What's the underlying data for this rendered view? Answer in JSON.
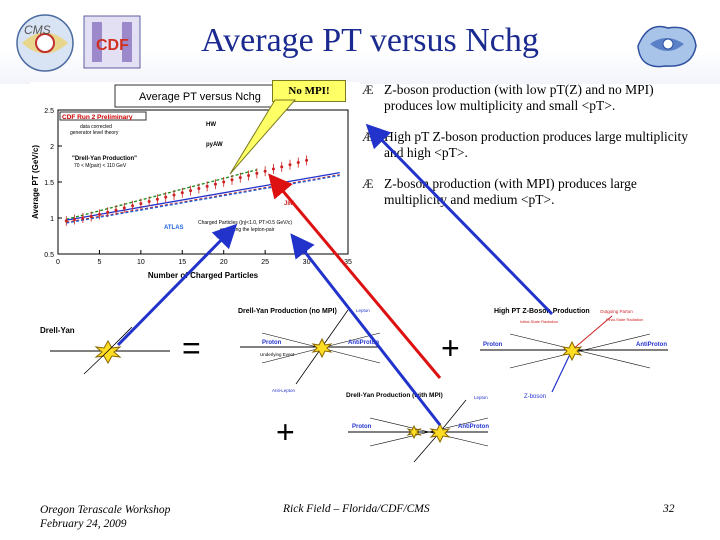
{
  "slide": {
    "title": "Average PT versus Nchg",
    "callout": "No MPI!",
    "bullets": [
      "Z-boson production (with low pT(Z) and no MPI) produces low multiplicity and small <pT>.",
      "High pT Z-boson production produces large multiplicity and high <pT>.",
      "Z-boson production (with MPI) produces large multiplicity and medium <pT>."
    ],
    "bullet_mark": "Æ",
    "equals": "=",
    "plus": "+",
    "footer": {
      "left_line1": "Oregon Terascale Workshop",
      "left_line2": "February 24, 2009",
      "center": "Rick Field – Florida/CDF/CMS",
      "page": "32"
    }
  },
  "chart_data": {
    "type": "scatter",
    "title": "Average PT versus Nchg",
    "xlabel": "Number of Charged Particles",
    "ylabel": "Average PT (GeV/c)",
    "xlim": [
      0,
      35
    ],
    "ylim": [
      0.5,
      2.5
    ],
    "x_ticks": [
      "0",
      "5",
      "10",
      "15",
      "20",
      "25",
      "30",
      "35"
    ],
    "y_ticks": [
      "0.5",
      "1",
      "1.5",
      "2",
      "2.5"
    ],
    "annotations": {
      "header": "CDF Run 2 Preliminary",
      "sub1": "data corrected",
      "sub2": "generator level theory",
      "dy1": "\"Drell-Yan Production\"",
      "dy2": "70 < M(pair) < 110 GeV",
      "hw": "HW",
      "pyaw": "pyAW",
      "jimmy": "JIM",
      "atlas": "ATLAS",
      "cuts1": "Charged Particles (|η|<1.0, PT>0.5 GeV/c)",
      "cuts2": "excluding the lepton-pair"
    },
    "series": [
      {
        "name": "HW",
        "color": "#1a8a1a",
        "x": [
          1,
          2,
          3,
          4,
          5,
          6,
          7,
          8,
          9,
          10,
          11,
          12,
          13,
          14,
          15,
          16,
          17,
          18,
          19,
          20,
          21,
          22,
          23,
          24
        ],
        "y": [
          0.98,
          1.01,
          1.04,
          1.07,
          1.1,
          1.13,
          1.16,
          1.19,
          1.22,
          1.25,
          1.28,
          1.31,
          1.34,
          1.37,
          1.4,
          1.43,
          1.46,
          1.49,
          1.52,
          1.55,
          1.58,
          1.61,
          1.64,
          1.67
        ]
      },
      {
        "name": "pyAW",
        "color": "#2233cc",
        "x": [
          1,
          2,
          3,
          4,
          5,
          6,
          7,
          8,
          9,
          10,
          11,
          12,
          13,
          14,
          15,
          16,
          17,
          18,
          19,
          20,
          21,
          22,
          23,
          24,
          25,
          26,
          27,
          28,
          29,
          30,
          31,
          32,
          33,
          34
        ],
        "y": [
          0.97,
          0.99,
          1.01,
          1.03,
          1.05,
          1.07,
          1.09,
          1.11,
          1.13,
          1.15,
          1.17,
          1.19,
          1.21,
          1.23,
          1.25,
          1.27,
          1.29,
          1.31,
          1.33,
          1.35,
          1.37,
          1.39,
          1.41,
          1.43,
          1.45,
          1.47,
          1.49,
          1.51,
          1.53,
          1.55,
          1.57,
          1.59,
          1.61,
          1.63
        ]
      },
      {
        "name": "JIM",
        "color": "#cc2222",
        "x": [
          1,
          2,
          3,
          4,
          5,
          6,
          7,
          8,
          9,
          10,
          11,
          12,
          13,
          14,
          15,
          16,
          17,
          18,
          19,
          20,
          21,
          22,
          23,
          24,
          25,
          26,
          27,
          28,
          29,
          30,
          31,
          32,
          33,
          34
        ],
        "y": [
          0.94,
          0.96,
          0.98,
          1.0,
          1.02,
          1.04,
          1.06,
          1.08,
          1.1,
          1.12,
          1.14,
          1.16,
          1.18,
          1.2,
          1.22,
          1.24,
          1.26,
          1.28,
          1.3,
          1.32,
          1.34,
          1.36,
          1.38,
          1.4,
          1.42,
          1.44,
          1.46,
          1.48,
          1.5,
          1.52,
          1.54,
          1.56,
          1.58,
          1.6
        ]
      },
      {
        "name": "ATLAS",
        "color": "#2266dd",
        "x": [
          1,
          2,
          3,
          4,
          5,
          6,
          7,
          8,
          9,
          10,
          11,
          12,
          13,
          14,
          15,
          16,
          17,
          18,
          19,
          20,
          21,
          22,
          23,
          24,
          25,
          26,
          27,
          28,
          29,
          30,
          31,
          32,
          33,
          34
        ],
        "y": [
          0.93,
          0.95,
          0.97,
          0.99,
          1.01,
          1.03,
          1.05,
          1.07,
          1.09,
          1.11,
          1.13,
          1.15,
          1.17,
          1.19,
          1.21,
          1.23,
          1.25,
          1.27,
          1.29,
          1.31,
          1.33,
          1.35,
          1.37,
          1.39,
          1.41,
          1.43,
          1.45,
          1.47,
          1.49,
          1.51,
          1.53,
          1.55,
          1.57,
          1.59
        ]
      },
      {
        "name": "data",
        "color": "#000000",
        "x": [
          1,
          2,
          3,
          4,
          5,
          6,
          7,
          8,
          9,
          10,
          11,
          12,
          13,
          14,
          15,
          16,
          17,
          18,
          19,
          20,
          21,
          22,
          23,
          24,
          25,
          26,
          27,
          28,
          29,
          30
        ],
        "y": [
          0.96,
          0.98,
          1.0,
          1.02,
          1.05,
          1.08,
          1.11,
          1.14,
          1.17,
          1.2,
          1.23,
          1.26,
          1.29,
          1.32,
          1.35,
          1.38,
          1.41,
          1.44,
          1.47,
          1.5,
          1.53,
          1.56,
          1.59,
          1.62,
          1.65,
          1.68,
          1.71,
          1.74,
          1.77,
          1.8
        ]
      }
    ],
    "diagrams": {
      "dy_label": "Drell-Yan",
      "dy_nompi_title": "Drell-Yan Production (no MPI)",
      "dy_mpi_title": "Drell-Yan Production (with MPI)",
      "highpt_title": "High PT Z-Boson Production",
      "proton": "Proton",
      "antiproton": "AntiProton",
      "underlying_event": "Underlying Event",
      "lepton": "Lepton",
      "anti_lepton": "Anti-Lepton",
      "z_boson": "Z-boson",
      "outgoing_parton": "Outgoing Parton",
      "initial_state_radiation": "Initial-State Radiation",
      "final_state_radiation": "Final-State Radiation"
    }
  }
}
